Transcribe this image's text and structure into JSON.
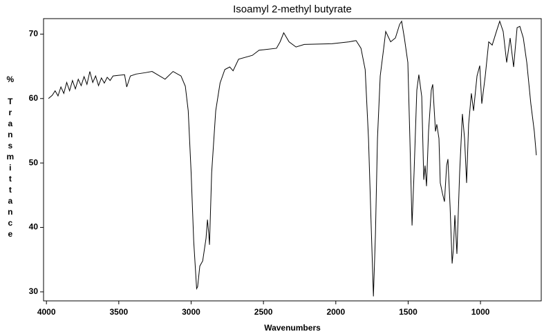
{
  "chart_data": {
    "type": "line",
    "title": "Isoamyl 2-methyl butyrate",
    "xlabel": "Wavenumbers",
    "ylabel": "% Transmittance",
    "color": "#000000",
    "xlim": [
      4020,
      580
    ],
    "xticks": [
      4000,
      3500,
      3000,
      2500,
      2000,
      1500,
      1000
    ],
    "ylim": [
      28.6,
      72.4
    ],
    "yticks": [
      30,
      40,
      50,
      60,
      70
    ],
    "x": [
      3986,
      3960,
      3940,
      3920,
      3900,
      3880,
      3860,
      3840,
      3820,
      3800,
      3780,
      3760,
      3740,
      3720,
      3700,
      3680,
      3660,
      3640,
      3620,
      3600,
      3580,
      3560,
      3540,
      3500,
      3460,
      3445,
      3420,
      3380,
      3320,
      3270,
      3180,
      3125,
      3070,
      3040,
      3020,
      3000,
      2982,
      2962,
      2955,
      2940,
      2920,
      2897,
      2887,
      2878,
      2873,
      2858,
      2830,
      2800,
      2767,
      2733,
      2710,
      2672,
      2577,
      2530,
      2410,
      2385,
      2360,
      2323,
      2275,
      2218,
      2027,
      1908,
      1860,
      1826,
      1797,
      1774,
      1755,
      1740,
      1726,
      1712,
      1693,
      1669,
      1655,
      1621,
      1588,
      1559,
      1545,
      1526,
      1502,
      1488,
      1473,
      1459,
      1440,
      1426,
      1406,
      1392,
      1383,
      1373,
      1359,
      1340,
      1330,
      1311,
      1302,
      1287,
      1278,
      1263,
      1249,
      1234,
      1225,
      1210,
      1196,
      1187,
      1177,
      1163,
      1144,
      1125,
      1110,
      1096,
      1082,
      1063,
      1048,
      1024,
      1005,
      991,
      967,
      943,
      919,
      890,
      867,
      843,
      819,
      795,
      771,
      747,
      728,
      704,
      680,
      652,
      628,
      614
    ],
    "values": [
      60.0,
      60.5,
      61.2,
      60.4,
      61.8,
      60.8,
      62.5,
      61.2,
      62.8,
      61.5,
      63.0,
      62.0,
      63.4,
      62.2,
      64.2,
      62.5,
      63.5,
      62.0,
      63.2,
      62.4,
      63.3,
      62.8,
      63.5,
      63.6,
      63.7,
      61.8,
      63.5,
      63.8,
      64.0,
      64.2,
      63.0,
      64.2,
      63.5,
      61.9,
      58.1,
      48.5,
      37.8,
      30.5,
      30.8,
      34.0,
      34.8,
      38.3,
      41.2,
      39.0,
      37.3,
      48.5,
      58.1,
      62.4,
      64.5,
      64.9,
      64.3,
      66.1,
      66.7,
      67.5,
      67.8,
      68.8,
      70.2,
      68.8,
      68.0,
      68.4,
      68.5,
      68.8,
      69.0,
      67.8,
      64.5,
      53.8,
      39.9,
      29.3,
      38.9,
      53.8,
      63.5,
      67.8,
      70.4,
      68.8,
      69.4,
      71.5,
      72.0,
      69.4,
      65.6,
      53.8,
      40.3,
      48.5,
      61.3,
      63.7,
      60.3,
      47.4,
      49.6,
      46.4,
      54.9,
      61.3,
      62.2,
      54.9,
      56.0,
      53.8,
      46.9,
      45.3,
      44.0,
      49.6,
      50.6,
      43.2,
      34.4,
      36.7,
      41.9,
      35.9,
      48.5,
      57.6,
      53.8,
      46.9,
      56.0,
      60.8,
      58.1,
      63.5,
      65.1,
      59.2,
      63.5,
      68.8,
      68.3,
      70.4,
      72.0,
      70.4,
      65.6,
      69.4,
      64.9,
      71.0,
      71.2,
      69.4,
      65.6,
      59.2,
      54.9,
      51.2
    ]
  }
}
